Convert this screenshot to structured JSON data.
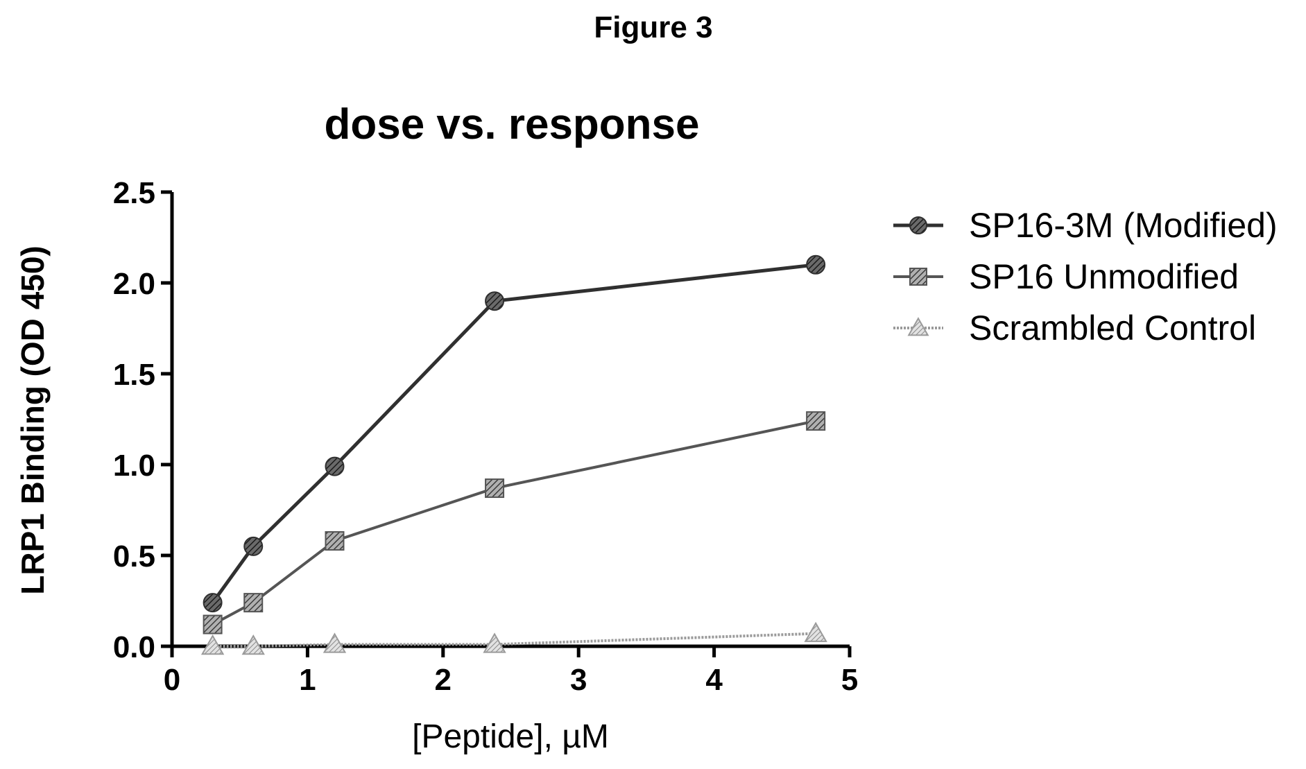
{
  "figure_label": "Figure 3",
  "chart_data": {
    "type": "line",
    "title": "dose vs. response",
    "xlabel": "[Peptide], µM",
    "ylabel": "LRP1 Binding (OD 450)",
    "xlim": [
      0,
      5
    ],
    "ylim": [
      0,
      2.5
    ],
    "xticks": [
      "0",
      "1",
      "2",
      "3",
      "4",
      "5"
    ],
    "yticks": [
      "0.0",
      "0.5",
      "1.0",
      "1.5",
      "2.0",
      "2.5"
    ],
    "grid": false,
    "legend_position": "right",
    "series": [
      {
        "name": "SP16-3M (Modified)",
        "marker": "circle",
        "color": "#303030",
        "x": [
          0.3,
          0.6,
          1.2,
          2.38,
          4.75
        ],
        "y": [
          0.24,
          0.55,
          0.99,
          1.9,
          2.1
        ]
      },
      {
        "name": "SP16 Unmodified",
        "marker": "square",
        "color": "#555555",
        "x": [
          0.3,
          0.6,
          1.2,
          2.38,
          4.75
        ],
        "y": [
          0.12,
          0.24,
          0.58,
          0.87,
          1.24
        ]
      },
      {
        "name": "Scrambled Control",
        "marker": "triangle",
        "color": "#9a9a9a",
        "x": [
          0.3,
          0.6,
          1.2,
          2.38,
          4.75
        ],
        "y": [
          0.0,
          0.0,
          0.01,
          0.01,
          0.07
        ]
      }
    ]
  }
}
